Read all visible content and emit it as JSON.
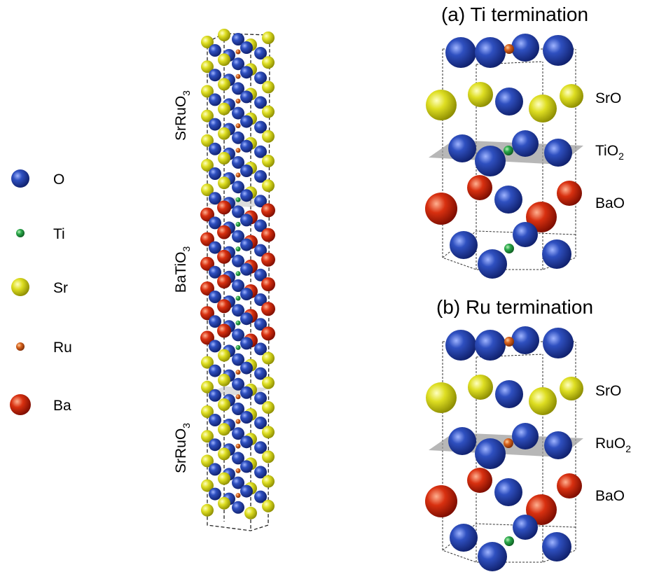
{
  "legend": [
    {
      "label": "O"
    },
    {
      "label": "Ti"
    },
    {
      "label": "Sr"
    },
    {
      "label": "Ru"
    },
    {
      "label": "Ba"
    }
  ],
  "stack": {
    "labels": [
      {
        "base": "SrRuO",
        "sub": "3"
      },
      {
        "base": "BaTiO",
        "sub": "3"
      },
      {
        "base": "SrRuO",
        "sub": "3"
      }
    ]
  },
  "panels": [
    {
      "title": "(a) Ti termination",
      "layers": [
        {
          "base": "SrO"
        },
        {
          "base": "TiO",
          "sub": "2"
        },
        {
          "base": "BaO"
        }
      ]
    },
    {
      "title": "(b) Ru termination",
      "layers": [
        {
          "base": "SrO"
        },
        {
          "base": "RuO",
          "sub": "2"
        },
        {
          "base": "BaO"
        }
      ]
    }
  ]
}
